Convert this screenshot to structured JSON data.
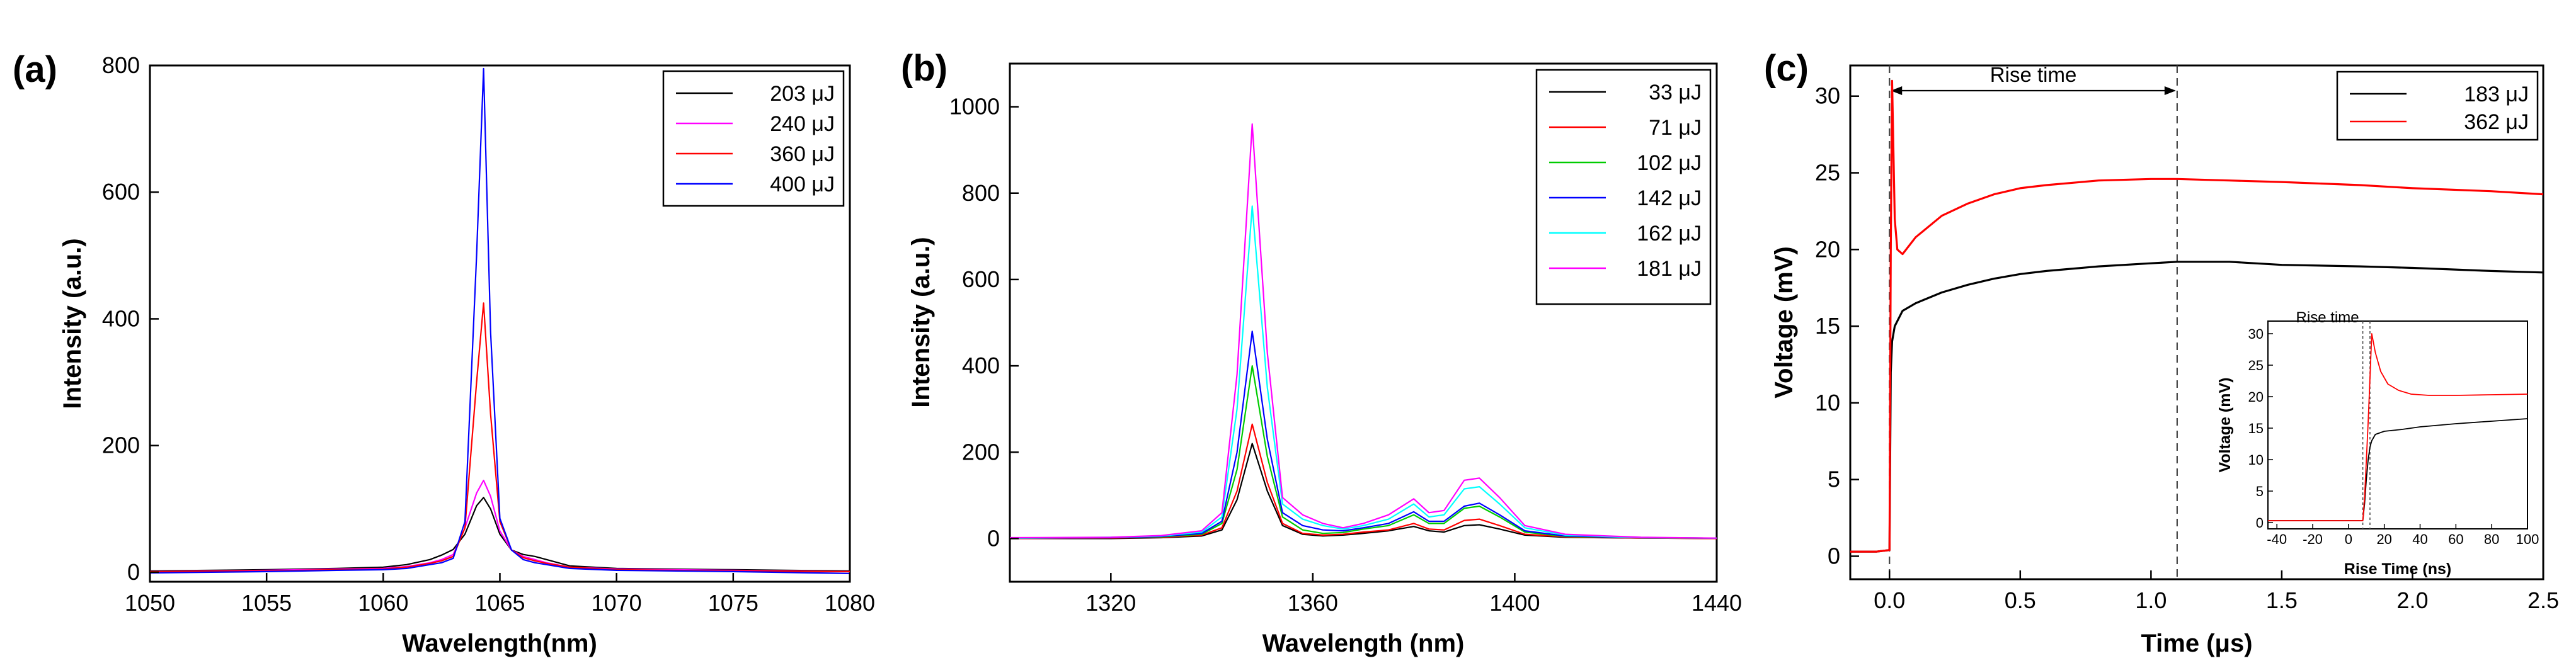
{
  "chart_data": [
    {
      "type": "line",
      "panel": "(a)",
      "xlabel": "Wavelength(nm)",
      "ylabel": "Intensity (a.u.)",
      "xlim": [
        1050,
        1080
      ],
      "ylim": [
        -15,
        800
      ],
      "xticks": [
        "1050",
        "1055",
        "1060",
        "1065",
        "1070",
        "1075",
        "1080"
      ],
      "yticks": [
        "0",
        "200",
        "400",
        "600",
        "800"
      ],
      "legend_position": "top-right",
      "series": [
        {
          "name": "203 μJ",
          "color": "#000000",
          "x": [
            1050,
            1055,
            1058,
            1060,
            1061,
            1062,
            1062.5,
            1063,
            1063.5,
            1064,
            1064.3,
            1064.6,
            1065,
            1065.5,
            1066,
            1066.5,
            1067,
            1068,
            1070,
            1075,
            1080
          ],
          "y": [
            2,
            4,
            6,
            8,
            12,
            20,
            27,
            36,
            60,
            105,
            118,
            100,
            60,
            35,
            28,
            25,
            20,
            10,
            6,
            4,
            2
          ]
        },
        {
          "name": "240 μJ",
          "color": "#ff00ff",
          "x": [
            1050,
            1055,
            1058,
            1060,
            1061,
            1062,
            1062.5,
            1063,
            1063.5,
            1064,
            1064.3,
            1064.6,
            1065,
            1065.5,
            1066,
            1066.5,
            1067,
            1068,
            1070,
            1075,
            1080
          ],
          "y": [
            1,
            3,
            5,
            6,
            9,
            15,
            20,
            28,
            70,
            125,
            145,
            120,
            65,
            35,
            25,
            20,
            15,
            8,
            5,
            3,
            1
          ]
        },
        {
          "name": "360 μJ",
          "color": "#ff0000",
          "x": [
            1050,
            1055,
            1058,
            1060,
            1061,
            1062,
            1062.5,
            1063,
            1063.5,
            1064,
            1064.3,
            1064.6,
            1065,
            1065.5,
            1066,
            1066.5,
            1067,
            1068,
            1070,
            1075,
            1080
          ],
          "y": [
            1,
            2,
            4,
            5,
            8,
            14,
            18,
            25,
            70,
            300,
            425,
            250,
            80,
            35,
            23,
            18,
            14,
            8,
            4,
            2,
            1
          ]
        },
        {
          "name": "400 μJ",
          "color": "#0000ff",
          "x": [
            1050,
            1055,
            1058,
            1060,
            1061,
            1062,
            1062.5,
            1063,
            1063.5,
            1064,
            1064.3,
            1064.6,
            1065,
            1065.5,
            1066,
            1066.5,
            1067,
            1068,
            1070,
            1075,
            1080
          ],
          "y": [
            -1,
            1,
            3,
            4,
            6,
            12,
            15,
            22,
            80,
            500,
            795,
            380,
            85,
            35,
            20,
            15,
            12,
            6,
            3,
            1,
            -2
          ]
        }
      ]
    },
    {
      "type": "line",
      "panel": "(b)",
      "xlabel": "Wavelength (nm)",
      "ylabel": "Intensity (a.u.)",
      "xlim": [
        1300,
        1440
      ],
      "ylim": [
        -100,
        1100
      ],
      "xticks": [
        "1320",
        "1360",
        "1400",
        "1440"
      ],
      "yticks": [
        "0",
        "200",
        "400",
        "600",
        "800",
        "1000"
      ],
      "legend_position": "top-right",
      "series": [
        {
          "name": "33 μJ",
          "color": "#000000",
          "x": [
            1300,
            1320,
            1330,
            1338,
            1342,
            1345,
            1348,
            1351,
            1354,
            1358,
            1362,
            1366,
            1370,
            1375,
            1380,
            1383,
            1386,
            1390,
            1393,
            1397,
            1402,
            1410,
            1425,
            1440
          ],
          "y": [
            0,
            0,
            2,
            6,
            20,
            90,
            220,
            110,
            30,
            10,
            6,
            8,
            12,
            18,
            28,
            18,
            15,
            30,
            32,
            22,
            8,
            3,
            1,
            0
          ]
        },
        {
          "name": "71 μJ",
          "color": "#ff0000",
          "x": [
            1300,
            1320,
            1330,
            1338,
            1342,
            1345,
            1348,
            1351,
            1354,
            1358,
            1362,
            1366,
            1370,
            1375,
            1380,
            1383,
            1386,
            1390,
            1393,
            1397,
            1402,
            1410,
            1425,
            1440
          ],
          "y": [
            0,
            1,
            3,
            8,
            25,
            110,
            265,
            130,
            35,
            12,
            8,
            10,
            15,
            20,
            35,
            22,
            20,
            42,
            45,
            30,
            10,
            4,
            1,
            0
          ]
        },
        {
          "name": "102 μJ",
          "color": "#00cc00",
          "x": [
            1300,
            1320,
            1330,
            1338,
            1342,
            1345,
            1348,
            1351,
            1354,
            1358,
            1362,
            1366,
            1370,
            1375,
            1380,
            1383,
            1386,
            1390,
            1393,
            1397,
            1402,
            1410,
            1425,
            1440
          ],
          "y": [
            1,
            2,
            4,
            10,
            35,
            160,
            400,
            190,
            50,
            20,
            12,
            14,
            22,
            30,
            55,
            35,
            35,
            70,
            75,
            50,
            15,
            5,
            2,
            1
          ]
        },
        {
          "name": "142 μJ",
          "color": "#0000ff",
          "x": [
            1300,
            1320,
            1330,
            1338,
            1342,
            1345,
            1348,
            1351,
            1354,
            1358,
            1362,
            1366,
            1370,
            1375,
            1380,
            1383,
            1386,
            1390,
            1393,
            1397,
            1402,
            1410,
            1425,
            1440
          ],
          "y": [
            1,
            2,
            5,
            12,
            40,
            200,
            480,
            230,
            60,
            30,
            20,
            18,
            25,
            35,
            62,
            40,
            40,
            75,
            82,
            55,
            18,
            6,
            2,
            1
          ]
        },
        {
          "name": "162 μJ",
          "color": "#00ffff",
          "x": [
            1300,
            1320,
            1330,
            1338,
            1342,
            1345,
            1348,
            1351,
            1354,
            1358,
            1362,
            1366,
            1370,
            1375,
            1380,
            1383,
            1386,
            1390,
            1393,
            1397,
            1402,
            1410,
            1425,
            1440
          ],
          "y": [
            1,
            3,
            6,
            15,
            50,
            300,
            770,
            350,
            80,
            45,
            30,
            22,
            30,
            45,
            80,
            50,
            55,
            115,
            120,
            80,
            25,
            8,
            2,
            1
          ]
        },
        {
          "name": "181 μJ",
          "color": "#ff00ff",
          "x": [
            1300,
            1320,
            1330,
            1338,
            1342,
            1345,
            1348,
            1351,
            1354,
            1358,
            1362,
            1366,
            1370,
            1375,
            1380,
            1383,
            1386,
            1390,
            1393,
            1397,
            1402,
            1410,
            1425,
            1440
          ],
          "y": [
            2,
            3,
            7,
            18,
            60,
            380,
            960,
            430,
            95,
            55,
            35,
            25,
            35,
            55,
            92,
            60,
            65,
            135,
            140,
            95,
            30,
            10,
            3,
            1
          ]
        }
      ]
    },
    {
      "type": "line",
      "panel": "(c)",
      "xlabel": "Time (μs)",
      "ylabel": "Voltage (mV)",
      "xlim": [
        -0.15,
        2.5
      ],
      "ylim": [
        -1.5,
        32
      ],
      "xticks": [
        "0.0",
        "0.5",
        "1.0",
        "1.5",
        "2.0",
        "2.5"
      ],
      "yticks": [
        "0",
        "5",
        "10",
        "15",
        "20",
        "25",
        "30"
      ],
      "legend_position": "top-right",
      "annotation": "Rise time",
      "vlines_x": [
        0.0,
        1.1
      ],
      "series": [
        {
          "name": "183 μJ",
          "color": "#000000",
          "x": [
            -0.15,
            -0.05,
            0.0,
            0.005,
            0.01,
            0.02,
            0.05,
            0.1,
            0.2,
            0.3,
            0.4,
            0.5,
            0.6,
            0.8,
            1.0,
            1.1,
            1.3,
            1.5,
            1.8,
            2.0,
            2.3,
            2.5
          ],
          "y": [
            0.3,
            0.3,
            0.4,
            12,
            14,
            15,
            16,
            16.5,
            17.2,
            17.7,
            18.1,
            18.4,
            18.6,
            18.9,
            19.1,
            19.2,
            19.2,
            19.0,
            18.9,
            18.8,
            18.6,
            18.5
          ]
        },
        {
          "name": "362 μJ",
          "color": "#ff0000",
          "x": [
            -0.15,
            -0.05,
            0.0,
            0.005,
            0.01,
            0.02,
            0.03,
            0.05,
            0.1,
            0.2,
            0.3,
            0.4,
            0.5,
            0.6,
            0.8,
            1.0,
            1.1,
            1.3,
            1.5,
            1.8,
            2.0,
            2.3,
            2.5
          ],
          "y": [
            0.3,
            0.3,
            0.4,
            20,
            31,
            22,
            20,
            19.7,
            20.8,
            22.2,
            23.0,
            23.6,
            24.0,
            24.2,
            24.5,
            24.6,
            24.6,
            24.5,
            24.4,
            24.2,
            24.0,
            23.8,
            23.6
          ]
        }
      ]
    },
    {
      "type": "line",
      "panel": "(c) inset",
      "xlabel": "Rise Time (ns)",
      "ylabel": "Voltage (mV)",
      "xlim": [
        -45,
        100
      ],
      "ylim": [
        -1,
        32
      ],
      "xticks": [
        "-40",
        "-20",
        "0",
        "20",
        "40",
        "60",
        "80",
        "100"
      ],
      "yticks": [
        "0",
        "5",
        "10",
        "15",
        "20",
        "25",
        "30"
      ],
      "annotation": "Rise time",
      "vlines_x": [
        8,
        12
      ],
      "series": [
        {
          "name": "183 μJ",
          "color": "#000000",
          "x": [
            -45,
            0,
            8,
            9,
            10,
            11,
            12,
            13,
            15,
            20,
            30,
            40,
            60,
            80,
            100
          ],
          "y": [
            0.3,
            0.3,
            0.3,
            3,
            7,
            10,
            12,
            13,
            14,
            14.5,
            14.8,
            15.2,
            15.7,
            16.1,
            16.5
          ]
        },
        {
          "name": "362 μJ",
          "color": "#ff0000",
          "x": [
            -45,
            0,
            8,
            9,
            10,
            11,
            12,
            13,
            15,
            18,
            22,
            28,
            35,
            45,
            60,
            80,
            100
          ],
          "y": [
            0.3,
            0.3,
            0.3,
            4,
            10,
            16,
            23,
            30,
            27,
            24,
            22,
            21,
            20.4,
            20.2,
            20.2,
            20.3,
            20.4
          ]
        }
      ]
    }
  ]
}
